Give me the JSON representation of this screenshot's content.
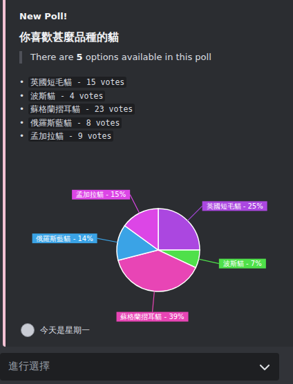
{
  "header": "New Poll!",
  "title": "你喜歡甚麼品種的貓",
  "summary": {
    "before": "There are ",
    "count": 5,
    "after": " options available in this poll"
  },
  "options": [
    "英國短毛貓 - 15 votes",
    "波斯貓 - 4 votes",
    "蘇格蘭摺耳貓 - 23 votes",
    "俄羅斯藍貓 - 8 votes",
    "孟加拉貓 - 9 votes"
  ],
  "chart_data": {
    "type": "pie",
    "categories": [
      "英國短毛貓",
      "波斯貓",
      "蘇格蘭摺耳貓",
      "俄羅斯藍貓",
      "孟加拉貓"
    ],
    "values": [
      25,
      7,
      39,
      14,
      15
    ],
    "value_labels": [
      "英國短毛貓 - 25%",
      "波斯貓 - 7%",
      "蘇格蘭摺耳貓 - 39%",
      "俄羅斯藍貓 - 14%",
      "孟加拉貓 - 15%"
    ],
    "colors": [
      "#ab47e0",
      "#4fe04a",
      "#e845b5",
      "#3aa3e6",
      "#dc46e6"
    ],
    "data_labels": true
  },
  "footer": "今天是星期一",
  "select": "進行選擇"
}
